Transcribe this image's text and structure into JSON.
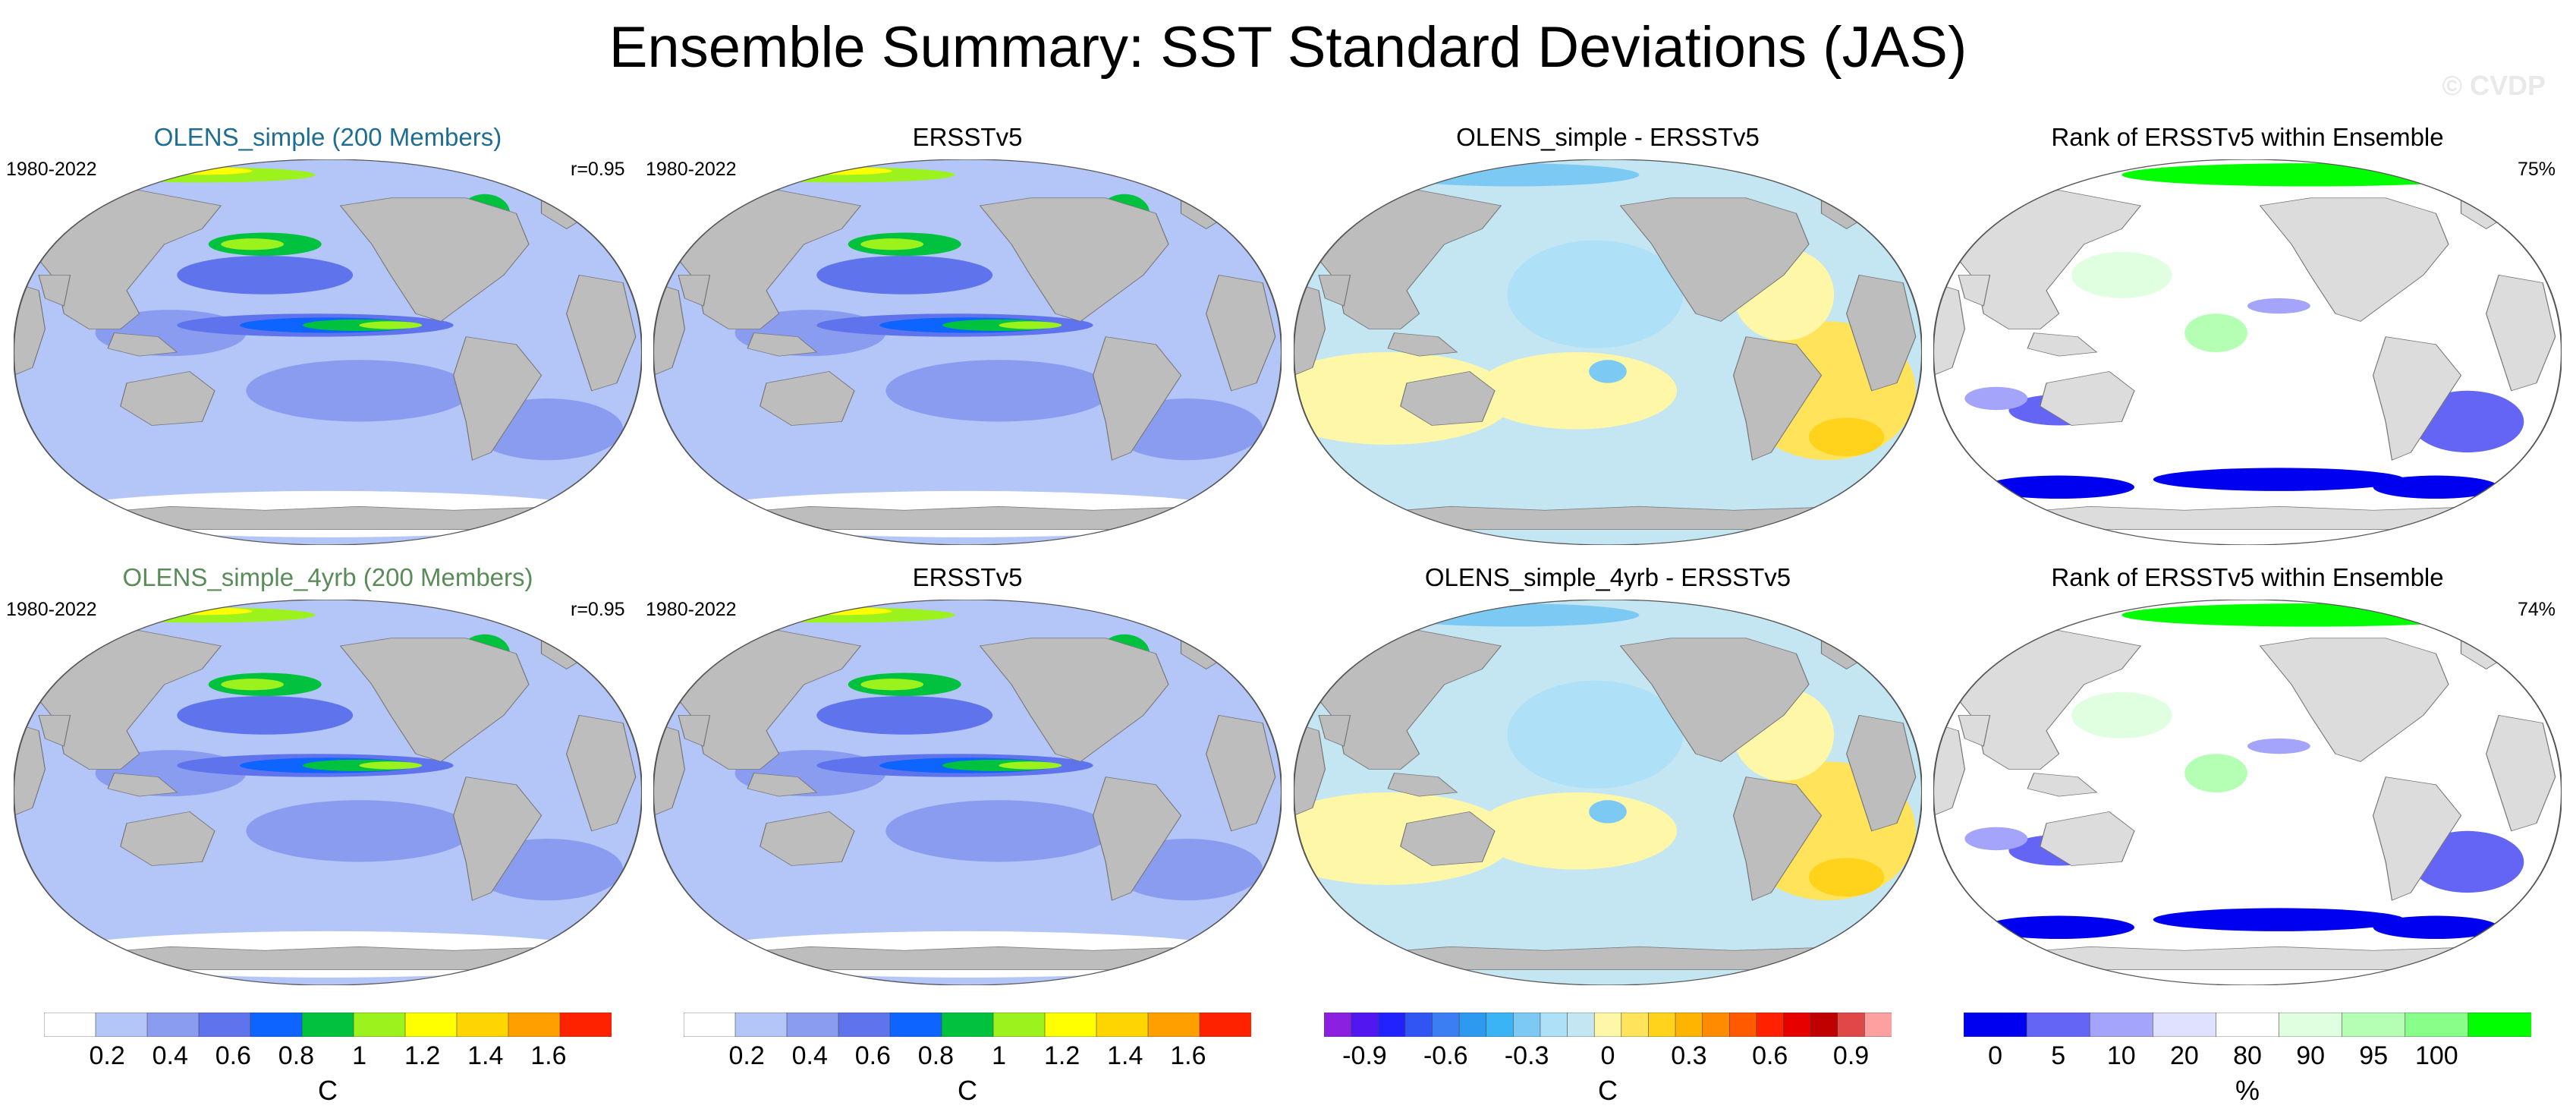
{
  "title": "Ensemble Summary: SST Standard Deviations (JAS)",
  "watermark": "© CVDP",
  "colors": {
    "ocean_default": "#aebff4",
    "land": "#bdbdbd",
    "title_row1_col1": "#1e6e91",
    "title_row2_col1": "#5a8c5a",
    "sd_scale": [
      "#ffffff",
      "#b4c5f8",
      "#8a9cf0",
      "#5f74ec",
      "#0d64ff",
      "#00c23f",
      "#9cf21c",
      "#ffff00",
      "#ffd500",
      "#ffa000",
      "#ff2200"
    ],
    "diff_scale": [
      "#8c20e0",
      "#5216f0",
      "#2222ff",
      "#2f55f5",
      "#3b7df2",
      "#2d9af0",
      "#3bb4f5",
      "#7ccaf3",
      "#aee0f7",
      "#c4e5f2",
      "#fff7a8",
      "#ffe35a",
      "#ffd21c",
      "#ffb400",
      "#ff8c00",
      "#ff5a00",
      "#ff2200",
      "#e60000",
      "#c00000",
      "#e04848",
      "#ffa0a0"
    ],
    "rank_scale": [
      "#0000f0",
      "#6464f5",
      "#a4a4fa",
      "#e0e0ff",
      "#ffffff",
      "#e0ffe0",
      "#b4ffb4",
      "#88ff88",
      "#00ff00"
    ]
  },
  "chart_data": [
    {
      "type": "heatmap",
      "title": "OLENS_simple (200 Members)",
      "left_label": "1980-2022",
      "right_label": "r=0.95",
      "variable": "SST standard deviation",
      "units": "C"
    },
    {
      "type": "heatmap",
      "title": "ERSSTv5",
      "left_label": "1980-2022",
      "right_label": "",
      "variable": "SST standard deviation",
      "units": "C"
    },
    {
      "type": "heatmap",
      "title": "OLENS_simple - ERSSTv5",
      "left_label": "",
      "right_label": "",
      "variable": "SST standard deviation difference",
      "units": "C"
    },
    {
      "type": "heatmap",
      "title": "Rank of ERSSTv5 within Ensemble",
      "left_label": "",
      "right_label": "75%",
      "variable": "rank",
      "units": "%"
    },
    {
      "type": "heatmap",
      "title": "OLENS_simple_4yrb (200 Members)",
      "left_label": "1980-2022",
      "right_label": "r=0.95",
      "variable": "SST standard deviation",
      "units": "C"
    },
    {
      "type": "heatmap",
      "title": "ERSSTv5",
      "left_label": "1980-2022",
      "right_label": "",
      "variable": "SST standard deviation",
      "units": "C"
    },
    {
      "type": "heatmap",
      "title": "OLENS_simple_4yrb - ERSSTv5",
      "left_label": "",
      "right_label": "",
      "variable": "SST standard deviation difference",
      "units": "C"
    },
    {
      "type": "heatmap",
      "title": "Rank of ERSSTv5 within Ensemble",
      "left_label": "",
      "right_label": "74%",
      "variable": "rank",
      "units": "%"
    }
  ],
  "colorbars": [
    {
      "name": "sd",
      "unit": "C",
      "min": 0,
      "max": 1.8,
      "ticks": [
        "0.2",
        "0.4",
        "0.6",
        "0.8",
        "1",
        "1.2",
        "1.4",
        "1.6"
      ],
      "tick_values": [
        0.2,
        0.4,
        0.6,
        0.8,
        1.0,
        1.2,
        1.4,
        1.6
      ]
    },
    {
      "name": "sd",
      "unit": "C",
      "min": 0,
      "max": 1.8,
      "ticks": [
        "0.2",
        "0.4",
        "0.6",
        "0.8",
        "1",
        "1.2",
        "1.4",
        "1.6"
      ],
      "tick_values": [
        0.2,
        0.4,
        0.6,
        0.8,
        1.0,
        1.2,
        1.4,
        1.6
      ]
    },
    {
      "name": "diff",
      "unit": "C",
      "min": -1.05,
      "max": 1.05,
      "ticks": [
        "-0.9",
        "-0.6",
        "-0.3",
        "0",
        "0.3",
        "0.6",
        "0.9"
      ],
      "tick_values": [
        -0.9,
        -0.6,
        -0.3,
        0,
        0.3,
        0.6,
        0.9
      ]
    },
    {
      "name": "rank",
      "unit": "%",
      "ticks": [
        "0",
        "5",
        "10",
        "20",
        "80",
        "90",
        "95",
        "100"
      ],
      "tick_boundaries": [
        1,
        2,
        3,
        4,
        5,
        6,
        7,
        8
      ]
    }
  ]
}
